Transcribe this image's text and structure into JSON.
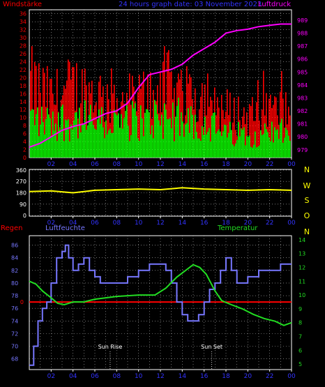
{
  "header": {
    "left_title": "Windstärke",
    "center_title": "24 hours graph date: 03 November 2023",
    "right_title": "Luftdruck"
  },
  "bottom_header": {
    "left": "Regen",
    "mid": "Luftfeuchte",
    "right": "Temperatur"
  },
  "colors": {
    "wind_gust": "#ff0000",
    "wind_avg": "#00ff00",
    "pressure": "#ff00ff",
    "direction": "#ffff00",
    "humidity": "#7777ff",
    "temperature": "#22dd22",
    "rain": "#ff0000",
    "tick_blue": "#3333ff",
    "direction_labels": "#ffff00"
  },
  "chart_data": [
    {
      "type": "bar",
      "name": "wind-pressure",
      "x_ticks": [
        "02",
        "04",
        "06",
        "08",
        "10",
        "12",
        "14",
        "16",
        "18",
        "20",
        "22",
        "00"
      ],
      "y_left_ticks": [
        0,
        2,
        4,
        6,
        8,
        10,
        12,
        14,
        16,
        18,
        20,
        22,
        24,
        26,
        28,
        30,
        32,
        34,
        36
      ],
      "y_right_ticks": [
        979,
        980,
        981,
        982,
        983,
        984,
        985,
        986,
        987,
        988,
        989
      ],
      "wind_gust_envelope": [
        [
          0,
          26
        ],
        [
          2,
          20
        ],
        [
          4,
          24
        ],
        [
          6,
          22
        ],
        [
          8,
          20
        ],
        [
          10,
          20
        ],
        [
          12,
          26
        ],
        [
          14,
          23
        ],
        [
          16,
          21
        ],
        [
          18,
          16
        ],
        [
          20,
          14
        ],
        [
          22,
          16
        ],
        [
          24,
          16
        ]
      ],
      "wind_avg_envelope": [
        [
          0,
          14
        ],
        [
          2,
          13
        ],
        [
          4,
          13
        ],
        [
          6,
          12
        ],
        [
          8,
          12
        ],
        [
          10,
          13
        ],
        [
          12,
          14
        ],
        [
          14,
          13
        ],
        [
          16,
          12
        ],
        [
          18,
          8
        ],
        [
          20,
          8
        ],
        [
          22,
          9
        ],
        [
          24,
          8
        ]
      ],
      "pressure": [
        [
          0,
          979.2
        ],
        [
          1,
          979.5
        ],
        [
          2,
          980.0
        ],
        [
          3,
          980.5
        ],
        [
          4,
          980.8
        ],
        [
          5,
          981.0
        ],
        [
          6,
          981.4
        ],
        [
          7,
          981.8
        ],
        [
          8,
          982.0
        ],
        [
          9,
          982.6
        ],
        [
          10,
          983.8
        ],
        [
          11,
          984.8
        ],
        [
          12,
          985.0
        ],
        [
          13,
          985.2
        ],
        [
          14,
          985.6
        ],
        [
          15,
          986.3
        ],
        [
          16,
          986.8
        ],
        [
          17,
          987.3
        ],
        [
          18,
          988.0
        ],
        [
          19,
          988.2
        ],
        [
          20,
          988.3
        ],
        [
          21,
          988.5
        ],
        [
          22,
          988.6
        ],
        [
          23,
          988.7
        ],
        [
          24,
          988.7
        ]
      ]
    },
    {
      "type": "line",
      "name": "wind-direction",
      "x_ticks": [
        "02",
        "04",
        "06",
        "08",
        "10",
        "12",
        "14",
        "16",
        "18",
        "20",
        "22",
        "00"
      ],
      "y_ticks": [
        0,
        90,
        180,
        270,
        360
      ],
      "direction_labels": [
        "N",
        "W",
        "S",
        "O",
        "N"
      ],
      "values": [
        [
          0,
          190
        ],
        [
          2,
          195
        ],
        [
          4,
          180
        ],
        [
          6,
          200
        ],
        [
          8,
          205
        ],
        [
          10,
          210
        ],
        [
          12,
          205
        ],
        [
          14,
          220
        ],
        [
          16,
          210
        ],
        [
          18,
          205
        ],
        [
          20,
          200
        ],
        [
          22,
          205
        ],
        [
          24,
          200
        ]
      ]
    },
    {
      "type": "line",
      "name": "humidity-temperature",
      "x_ticks": [
        "02",
        "04",
        "06",
        "08",
        "10",
        "12",
        "14",
        "16",
        "18",
        "20",
        "22",
        "00"
      ],
      "y_left_ticks": [
        68,
        70,
        72,
        74,
        76,
        78,
        80,
        82,
        84,
        86
      ],
      "y_left_mid_label": "0",
      "y_right_ticks": [
        5,
        6,
        7,
        8,
        9,
        10,
        11,
        12,
        13,
        14
      ],
      "annotations": [
        {
          "label": "Sun Rise",
          "x": 7.4
        },
        {
          "label": "Sun Set",
          "x": 16.7
        }
      ],
      "humidity": [
        [
          0,
          67
        ],
        [
          0.4,
          70
        ],
        [
          0.8,
          74
        ],
        [
          1.2,
          76
        ],
        [
          1.6,
          77
        ],
        [
          2.0,
          80
        ],
        [
          2.5,
          84
        ],
        [
          3.0,
          85
        ],
        [
          3.3,
          86
        ],
        [
          3.6,
          84
        ],
        [
          4.0,
          82
        ],
        [
          4.5,
          83
        ],
        [
          5.0,
          84
        ],
        [
          5.5,
          82
        ],
        [
          6.0,
          81
        ],
        [
          6.5,
          80
        ],
        [
          8.0,
          80
        ],
        [
          9.0,
          81
        ],
        [
          10.0,
          82
        ],
        [
          11.0,
          83
        ],
        [
          12.0,
          83
        ],
        [
          12.5,
          82
        ],
        [
          13.0,
          80
        ],
        [
          13.5,
          77
        ],
        [
          14.0,
          75
        ],
        [
          14.5,
          74
        ],
        [
          15.0,
          74
        ],
        [
          15.5,
          75
        ],
        [
          16.0,
          77
        ],
        [
          16.5,
          79
        ],
        [
          17.0,
          80
        ],
        [
          17.5,
          82
        ],
        [
          18.0,
          84
        ],
        [
          18.5,
          82
        ],
        [
          19.0,
          80
        ],
        [
          19.5,
          80
        ],
        [
          20.0,
          81
        ],
        [
          21.0,
          82
        ],
        [
          22.0,
          82
        ],
        [
          23.0,
          83
        ],
        [
          24.0,
          83
        ]
      ],
      "temperature": [
        [
          0,
          11.0
        ],
        [
          0.6,
          10.8
        ],
        [
          1.2,
          10.3
        ],
        [
          2.0,
          9.8
        ],
        [
          2.6,
          9.4
        ],
        [
          3.2,
          9.3
        ],
        [
          4.0,
          9.5
        ],
        [
          5.0,
          9.5
        ],
        [
          6.0,
          9.7
        ],
        [
          8.0,
          9.9
        ],
        [
          10.0,
          10.0
        ],
        [
          11.5,
          10.0
        ],
        [
          12.5,
          10.5
        ],
        [
          13.5,
          11.3
        ],
        [
          14.5,
          11.9
        ],
        [
          15.0,
          12.2
        ],
        [
          15.6,
          12.0
        ],
        [
          16.2,
          11.5
        ],
        [
          17.0,
          10.3
        ],
        [
          17.6,
          9.6
        ],
        [
          18.5,
          9.3
        ],
        [
          19.5,
          9.0
        ],
        [
          20.5,
          8.6
        ],
        [
          21.5,
          8.3
        ],
        [
          22.5,
          8.1
        ],
        [
          23.3,
          7.8
        ],
        [
          24.0,
          8.0
        ]
      ],
      "rain": [
        [
          0,
          0
        ],
        [
          24,
          0
        ]
      ]
    }
  ]
}
